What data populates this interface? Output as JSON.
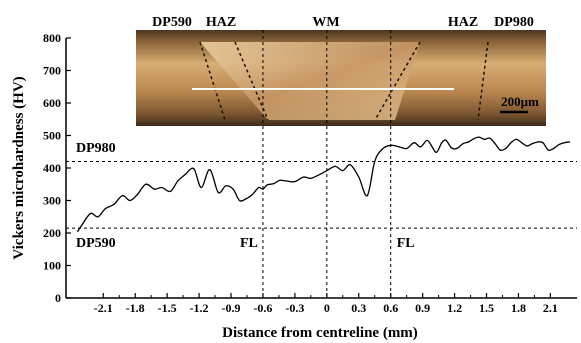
{
  "chart_data": {
    "type": "line",
    "xlabel": "Distance from centreline (mm)",
    "ylabel": "Vickers microhardness (HV)",
    "xlim": [
      -2.45,
      2.35
    ],
    "ylim": [
      0,
      800
    ],
    "xticks": [
      "-2.1",
      "-1.8",
      "-1.5",
      "-1.2",
      "-0.9",
      "-0.6",
      "-0.3",
      "0",
      "0.3",
      "0.6",
      "0.9",
      "1.2",
      "1.5",
      "1.8",
      "2.1"
    ],
    "xtick_values": [
      -2.1,
      -1.8,
      -1.5,
      -1.2,
      -0.9,
      -0.6,
      -0.3,
      0,
      0.3,
      0.6,
      0.9,
      1.2,
      1.5,
      1.8,
      2.1
    ],
    "yticks": [
      "0",
      "100",
      "200",
      "300",
      "400",
      "500",
      "600",
      "700",
      "800"
    ],
    "ytick_values": [
      0,
      100,
      200,
      300,
      400,
      500,
      600,
      700,
      800
    ],
    "series": [
      {
        "x": [
          -2.34,
          -2.3,
          -2.22,
          -2.15,
          -2.08,
          -2.0,
          -1.92,
          -1.85,
          -1.78,
          -1.7,
          -1.62,
          -1.55,
          -1.47,
          -1.4,
          -1.33,
          -1.25,
          -1.18,
          -1.1,
          -1.02,
          -0.95,
          -0.88,
          -0.82,
          -0.76,
          -0.7,
          -0.64,
          -0.6,
          -0.56,
          -0.5,
          -0.44,
          -0.38,
          -0.3,
          -0.22,
          -0.15,
          -0.08,
          0.0,
          0.08,
          0.15,
          0.22,
          0.3,
          0.38,
          0.45,
          0.52,
          0.6,
          0.68,
          0.75,
          0.82,
          0.88,
          0.94,
          0.98,
          1.03,
          1.08,
          1.12,
          1.17,
          1.22,
          1.28,
          1.33,
          1.38,
          1.43,
          1.48,
          1.53,
          1.58,
          1.63,
          1.68,
          1.73,
          1.78,
          1.83,
          1.88,
          1.93,
          1.98,
          2.03,
          2.08,
          2.13,
          2.18,
          2.23,
          2.28
        ],
        "y": [
          205,
          225,
          260,
          250,
          275,
          288,
          315,
          300,
          318,
          350,
          335,
          340,
          328,
          360,
          380,
          398,
          340,
          395,
          325,
          345,
          335,
          300,
          305,
          318,
          340,
          335,
          348,
          352,
          362,
          360,
          358,
          372,
          368,
          378,
          392,
          405,
          392,
          410,
          372,
          315,
          420,
          458,
          470,
          465,
          460,
          478,
          465,
          485,
          470,
          448,
          478,
          485,
          462,
          460,
          475,
          480,
          490,
          495,
          488,
          492,
          475,
          455,
          460,
          478,
          488,
          478,
          468,
          475,
          480,
          478,
          455,
          460,
          472,
          478,
          480
        ]
      }
    ],
    "reference_lines": [
      {
        "axis": "y",
        "value": 420,
        "label": "DP980"
      },
      {
        "axis": "y",
        "value": 215,
        "label": "DP590"
      },
      {
        "axis": "x",
        "value": -0.6,
        "label": "FL"
      },
      {
        "axis": "x",
        "value": 0,
        "label": ""
      },
      {
        "axis": "x",
        "value": 0.6,
        "label": "FL"
      }
    ],
    "inset_image": {
      "labels": [
        "DP590",
        "HAZ",
        "WM",
        "HAZ",
        "DP980"
      ],
      "scale_bar": "200μm"
    },
    "grid": false,
    "colors": {
      "line": "#000000",
      "inset_base": "#a87a4c",
      "inset_bright": "#e8c48c",
      "inset_dark": "#3a2a1a"
    }
  }
}
